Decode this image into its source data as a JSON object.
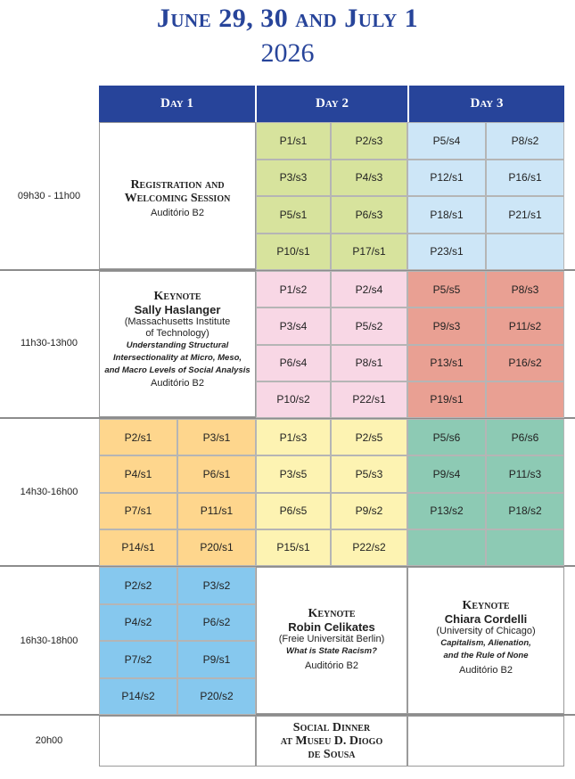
{
  "header": {
    "title_line1": "June 29, 30 and July 1",
    "title_line2": "2026"
  },
  "days": [
    "Day 1",
    "Day 2",
    "Day 3"
  ],
  "times": [
    "09h30 - 11h00",
    "11h30-13h00",
    "14h30-16h00",
    "16h30-18h00",
    "20h00"
  ],
  "registration": {
    "title_line1": "Registration and",
    "title_line2": "Welcoming Session",
    "room": "Auditório B2"
  },
  "keynote1": {
    "label": "Keynote",
    "speaker": "Sally Haslanger",
    "affiliation_line1": "(Massachusetts Institute",
    "affiliation_line2": "of Technology)",
    "talk_line1": "Understanding Structural",
    "talk_line2": "Intersectionality at Micro, Meso,",
    "talk_line3": "and Macro Levels of Social Analysis",
    "room": "Auditório B2"
  },
  "keynote2": {
    "label": "Keynote",
    "speaker": "Robin Celikates",
    "affiliation": "(Freie Universität Berlin)",
    "talk": "What is State Racism?",
    "room": "Auditório B2"
  },
  "keynote3": {
    "label": "Keynote",
    "speaker": "Chiara Cordelli",
    "affiliation": "(University of Chicago)",
    "talk_line1": "Capitalism, Alienation,",
    "talk_line2": "and the Rule of None",
    "room": "Auditório B2"
  },
  "dinner": {
    "line1": "Social Dinner",
    "line2": "at Museu D. Diogo",
    "line3": "de Sousa"
  },
  "sessions": {
    "day2_s1": [
      "P1/s1",
      "P2/s3",
      "P3/s3",
      "P4/s3",
      "P5/s1",
      "P6/s3",
      "P10/s1",
      "P17/s1"
    ],
    "day3_s1": [
      "P5/s4",
      "P8/s2",
      "P12/s1",
      "P16/s1",
      "P18/s1",
      "P21/s1",
      "P23/s1",
      ""
    ],
    "day2_s2": [
      "P1/s2",
      "P2/s4",
      "P3/s4",
      "P5/s2",
      "P6/s4",
      "P8/s1",
      "P10/s2",
      "P22/s1"
    ],
    "day3_s2": [
      "P5/s5",
      "P8/s3",
      "P9/s3",
      "P11/s2",
      "P13/s1",
      "P16/s2",
      "P19/s1",
      ""
    ],
    "day1_s3": [
      "P2/s1",
      "P3/s1",
      "P4/s1",
      "P6/s1",
      "P7/s1",
      "P11/s1",
      "P14/s1",
      "P20/s1"
    ],
    "day2_s3": [
      "P1/s3",
      "P2/s5",
      "P3/s5",
      "P5/s3",
      "P6/s5",
      "P9/s2",
      "P15/s1",
      "P22/s2"
    ],
    "day3_s3": [
      "P5/s6",
      "P6/s6",
      "P9/s4",
      "P11/s3",
      "P13/s2",
      "P18/s2",
      "",
      ""
    ],
    "day1_s4": [
      "P2/s2",
      "P3/s2",
      "P4/s2",
      "P6/s2",
      "P7/s2",
      "P9/s1",
      "P14/s2",
      "P20/s2"
    ]
  }
}
